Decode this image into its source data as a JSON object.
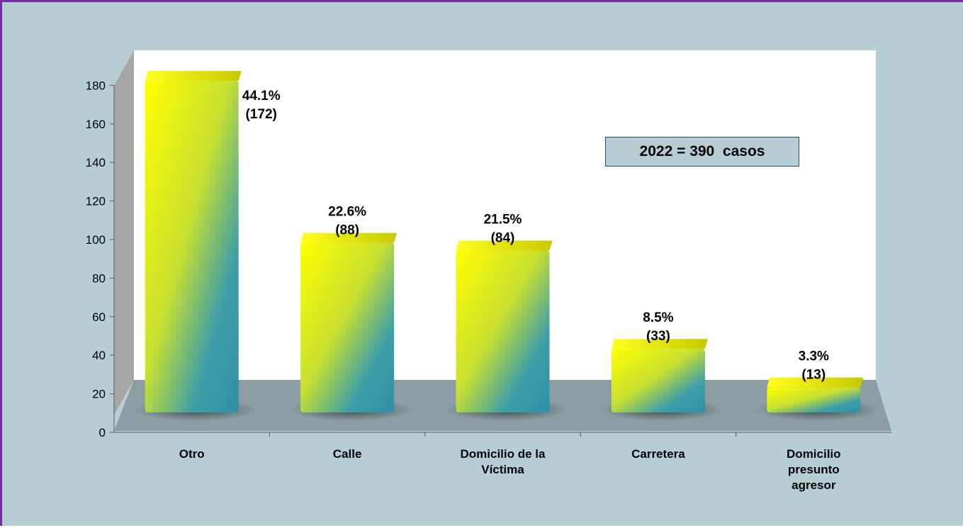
{
  "chart_data": {
    "type": "bar",
    "categories": [
      "Otro",
      "Calle",
      "Domicilio de la Víctima",
      "Carretera",
      "Domicilio presunto agresor"
    ],
    "category_lines": [
      [
        "Otro"
      ],
      [
        "Calle"
      ],
      [
        "Domicilio de la",
        "Víctima"
      ],
      [
        "Carretera"
      ],
      [
        "Domicilio",
        "presunto",
        "agresor"
      ]
    ],
    "values": [
      172,
      88,
      84,
      33,
      13
    ],
    "percent_labels": [
      "44.1%",
      "22.6%",
      "21.5%",
      "8.5%",
      "3.3%"
    ],
    "count_labels": [
      "(172)",
      "(88)",
      "(84)",
      "(33)",
      "(13)"
    ],
    "yticks": [
      0,
      20,
      40,
      60,
      80,
      100,
      120,
      140,
      160,
      180
    ],
    "ylim": [
      0,
      180
    ],
    "annotation": "2022 = 390  casos",
    "grid": false,
    "legend": "none",
    "colors": {
      "bar_light": "#ffff00",
      "bar_dark": "#2e95a8",
      "floor": "#8c9ea3",
      "wall": "#ffffff",
      "frame_border": "#7030a0",
      "background": "#b7cdd4"
    }
  }
}
